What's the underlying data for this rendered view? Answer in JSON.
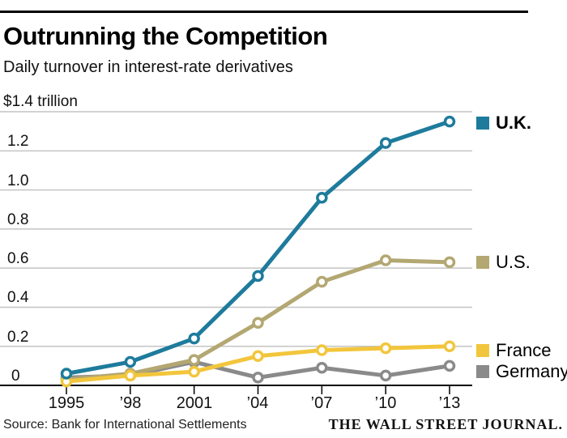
{
  "header": {
    "title": "Outrunning the Competition",
    "subtitle": "Daily turnover in interest-rate derivatives"
  },
  "chart_data": {
    "type": "line",
    "title": "Outrunning the Competition",
    "subtitle": "Daily turnover in interest-rate derivatives",
    "unit": "trillion USD",
    "x": [
      1995,
      1998,
      2001,
      2004,
      2007,
      2010,
      2013
    ],
    "x_tick_labels": [
      "1995",
      "’98",
      "2001",
      "’04",
      "’07",
      "’10",
      "’13"
    ],
    "y_tick_labels": [
      "$1.4 trillion",
      "1.2",
      "1.0",
      "0.8",
      "0.6",
      "0.4",
      "0.2",
      "0"
    ],
    "ylim": [
      0,
      1.4
    ],
    "grid": "horizontal",
    "gridline_values": [
      1.4,
      1.2,
      1.0,
      0.8,
      0.6,
      0.4,
      0.2
    ],
    "legend_position": "right",
    "series": [
      {
        "name": "U.K.",
        "color": "#1e7b9c",
        "values": [
          0.06,
          0.12,
          0.24,
          0.56,
          0.96,
          1.24,
          1.35
        ]
      },
      {
        "name": "U.S.",
        "color": "#b3a772",
        "values": [
          0.03,
          0.06,
          0.13,
          0.32,
          0.53,
          0.64,
          0.63
        ]
      },
      {
        "name": "France",
        "color": "#f2c63c",
        "values": [
          0.02,
          0.05,
          0.07,
          0.15,
          0.18,
          0.19,
          0.2
        ]
      },
      {
        "name": "Germany",
        "color": "#8a8a8a",
        "values": [
          0.04,
          0.05,
          0.12,
          0.04,
          0.09,
          0.05,
          0.1
        ]
      }
    ],
    "marker": "open-circle",
    "colors": {
      "uk": "#1e7b9c",
      "us": "#b3a772",
      "france": "#f2c63c",
      "germany": "#8a8a8a",
      "gridline": "#c4c4c4",
      "axis": "#000000"
    }
  },
  "footer": {
    "source": "Source: Bank for International Settlements",
    "brand": "THE WALL STREET JOURNAL."
  }
}
